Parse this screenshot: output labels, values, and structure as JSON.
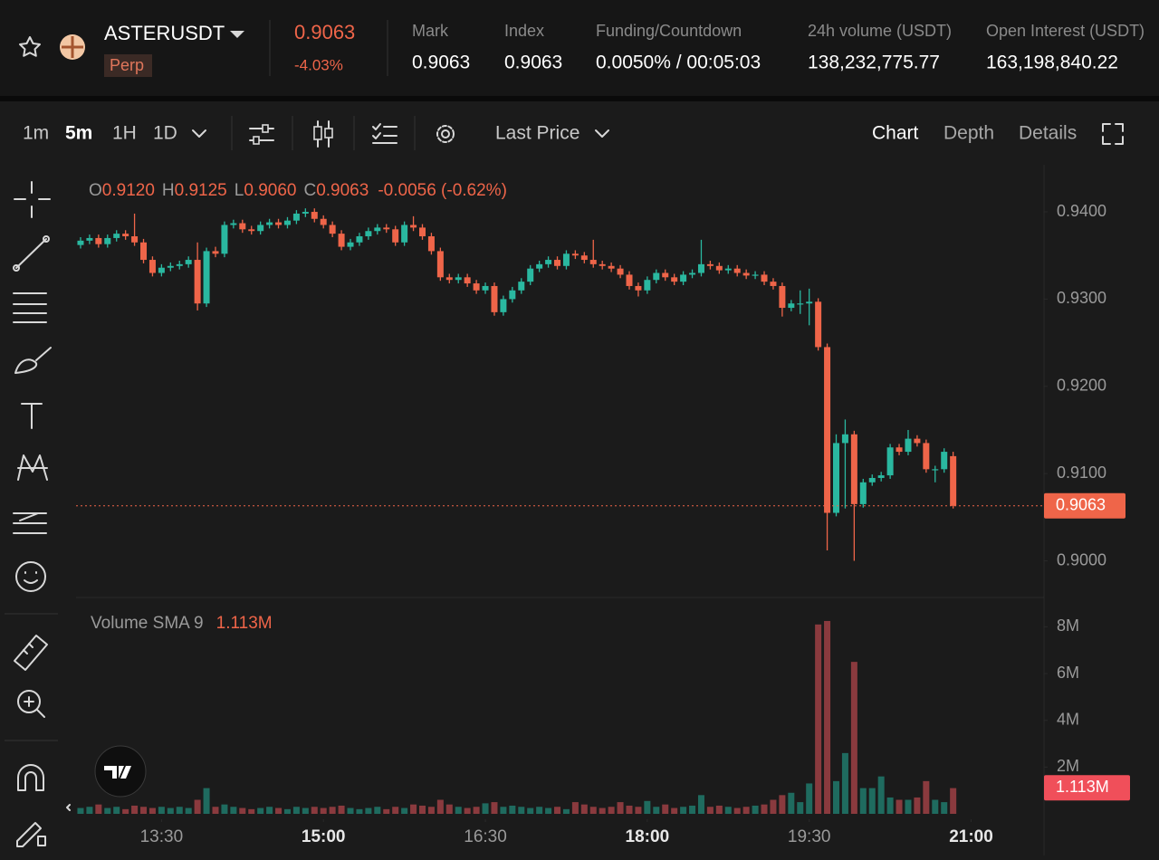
{
  "header": {
    "symbol": "ASTERUSDT",
    "badge": "Perp",
    "price": "0.9063",
    "change": "-4.03%",
    "stats": [
      {
        "label": "Mark",
        "value": "0.9063"
      },
      {
        "label": "Index",
        "value": "0.9063"
      },
      {
        "label": "Funding/Countdown",
        "value": "0.0050% / 00:05:03"
      },
      {
        "label": "24h volume (USDT)",
        "value": "138,232,775.77"
      },
      {
        "label": "Open Interest (USDT)",
        "value": "163,198,840.22"
      }
    ]
  },
  "toolbar": {
    "intervals": [
      "1m",
      "5m",
      "1H",
      "1D"
    ],
    "price_type": "Last Price",
    "views": [
      "Chart",
      "Depth",
      "Details"
    ]
  },
  "chart_data": {
    "type": "candlestick",
    "legend": {
      "O": "O",
      "open": "0.9120",
      "H": "H",
      "high": "0.9125",
      "L": "L",
      "low": "0.9060",
      "C": "C",
      "close": "0.9063",
      "change": "-0.0056 (-0.62%)"
    },
    "up_color": "#2ab8a0",
    "down_color": "#ef6549",
    "grid": false,
    "xlim": [
      -0.5,
      107
    ],
    "xticks": [
      {
        "value": 9,
        "label": "13:30"
      },
      {
        "value": 27,
        "label": "15:00"
      },
      {
        "value": 45,
        "label": "16:30"
      },
      {
        "value": 63,
        "label": "18:00"
      },
      {
        "value": 81,
        "label": "19:30"
      },
      {
        "value": 99,
        "label": "21:00"
      }
    ],
    "ylim": [
      0.8958,
      0.9454
    ],
    "yticks": [
      {
        "value": 0.94,
        "label": "0.9400"
      },
      {
        "value": 0.93,
        "label": "0.9300"
      },
      {
        "value": 0.92,
        "label": "0.9200"
      },
      {
        "value": 0.91,
        "label": "0.9100"
      },
      {
        "value": 0.9,
        "label": "0.9000"
      }
    ],
    "last_price": {
      "value": 0.9063,
      "label": "0.9063"
    },
    "open": [
      0.9362,
      0.9367,
      0.937,
      0.9363,
      0.937,
      0.9375,
      0.9372,
      0.9365,
      0.9345,
      0.933,
      0.9336,
      0.9338,
      0.934,
      0.9345,
      0.9295,
      0.9355,
      0.9352,
      0.9385,
      0.9387,
      0.938,
      0.9378,
      0.9385,
      0.9388,
      0.9385,
      0.939,
      0.9398,
      0.94,
      0.9392,
      0.9385,
      0.9375,
      0.936,
      0.9365,
      0.9372,
      0.9378,
      0.9382,
      0.938,
      0.9365,
      0.9385,
      0.9382,
      0.9372,
      0.9355,
      0.9325,
      0.9322,
      0.9325,
      0.9318,
      0.931,
      0.9315,
      0.9285,
      0.93,
      0.931,
      0.932,
      0.9335,
      0.934,
      0.9345,
      0.9338,
      0.9352,
      0.935,
      0.9345,
      0.934,
      0.9338,
      0.9335,
      0.9328,
      0.9315,
      0.931,
      0.9322,
      0.933,
      0.9325,
      0.932,
      0.9328,
      0.933,
      0.934,
      0.9338,
      0.9333,
      0.9335,
      0.933,
      0.9327,
      0.9328,
      0.932,
      0.9315,
      0.929,
      0.9295,
      0.9295,
      0.9297,
      0.9245,
      0.9055,
      0.9135,
      0.9145,
      0.9065,
      0.909,
      0.9095,
      0.9098,
      0.913,
      0.9125,
      0.914,
      0.9135,
      0.9105,
      0.9105,
      0.912
    ],
    "high": [
      0.9371,
      0.9374,
      0.9374,
      0.9374,
      0.9379,
      0.9379,
      0.9398,
      0.9369,
      0.9349,
      0.934,
      0.9342,
      0.9344,
      0.9349,
      0.9365,
      0.9359,
      0.936,
      0.9389,
      0.9391,
      0.9391,
      0.9384,
      0.9389,
      0.9392,
      0.9392,
      0.9394,
      0.9402,
      0.9404,
      0.9404,
      0.9396,
      0.9389,
      0.9379,
      0.9369,
      0.9376,
      0.9382,
      0.9386,
      0.9386,
      0.9384,
      0.9389,
      0.9395,
      0.9386,
      0.9376,
      0.9359,
      0.9329,
      0.9329,
      0.9329,
      0.9322,
      0.9319,
      0.9319,
      0.9304,
      0.9314,
      0.9324,
      0.9339,
      0.9344,
      0.9349,
      0.9349,
      0.9356,
      0.9356,
      0.9354,
      0.9368,
      0.9344,
      0.9342,
      0.9339,
      0.9332,
      0.9319,
      0.9326,
      0.9334,
      0.9334,
      0.9329,
      0.9332,
      0.9334,
      0.9368,
      0.9344,
      0.9342,
      0.9339,
      0.9339,
      0.9334,
      0.9332,
      0.9332,
      0.9324,
      0.9319,
      0.9299,
      0.931,
      0.9312,
      0.9301,
      0.9249,
      0.9145,
      0.9162,
      0.9149,
      0.9094,
      0.9099,
      0.9102,
      0.9134,
      0.9134,
      0.915,
      0.9144,
      0.9139,
      0.9109,
      0.9129,
      0.9125
    ],
    "low": [
      0.9358,
      0.9363,
      0.9359,
      0.9359,
      0.9366,
      0.9368,
      0.9361,
      0.9341,
      0.9326,
      0.9326,
      0.9332,
      0.9334,
      0.9336,
      0.9287,
      0.9291,
      0.9348,
      0.9348,
      0.9381,
      0.9376,
      0.9374,
      0.9374,
      0.9381,
      0.9381,
      0.9381,
      0.9386,
      0.9394,
      0.9388,
      0.9381,
      0.9371,
      0.9356,
      0.9356,
      0.9361,
      0.9368,
      0.9374,
      0.9376,
      0.9361,
      0.9361,
      0.9378,
      0.9368,
      0.9351,
      0.9321,
      0.9318,
      0.9318,
      0.9314,
      0.9306,
      0.9306,
      0.9281,
      0.9281,
      0.9296,
      0.9306,
      0.9316,
      0.9331,
      0.9336,
      0.9334,
      0.9334,
      0.9346,
      0.9341,
      0.9336,
      0.9334,
      0.9331,
      0.9324,
      0.9311,
      0.9303,
      0.9306,
      0.9318,
      0.9321,
      0.9316,
      0.9316,
      0.9324,
      0.9326,
      0.9334,
      0.9329,
      0.9329,
      0.9326,
      0.9323,
      0.9323,
      0.9316,
      0.9311,
      0.928,
      0.9286,
      0.9283,
      0.927,
      0.9241,
      0.9012,
      0.9051,
      0.906,
      0.9,
      0.9061,
      0.9086,
      0.9091,
      0.9094,
      0.9121,
      0.9121,
      0.9131,
      0.9101,
      0.909,
      0.9101,
      0.906
    ],
    "close": [
      0.9367,
      0.937,
      0.9363,
      0.937,
      0.9375,
      0.9372,
      0.9365,
      0.9345,
      0.933,
      0.9336,
      0.9338,
      0.934,
      0.9345,
      0.9295,
      0.9355,
      0.9352,
      0.9385,
      0.9387,
      0.938,
      0.9378,
      0.9385,
      0.9388,
      0.9385,
      0.939,
      0.9398,
      0.94,
      0.9392,
      0.9385,
      0.9375,
      0.936,
      0.9365,
      0.9372,
      0.9378,
      0.9382,
      0.938,
      0.9365,
      0.9385,
      0.9382,
      0.9372,
      0.9355,
      0.9325,
      0.9322,
      0.9325,
      0.9318,
      0.931,
      0.9315,
      0.9285,
      0.93,
      0.931,
      0.932,
      0.9335,
      0.934,
      0.9345,
      0.9338,
      0.9352,
      0.935,
      0.9345,
      0.934,
      0.9338,
      0.9335,
      0.9328,
      0.9315,
      0.931,
      0.9322,
      0.933,
      0.9325,
      0.932,
      0.9328,
      0.933,
      0.934,
      0.9338,
      0.9333,
      0.9335,
      0.933,
      0.9327,
      0.9328,
      0.932,
      0.9315,
      0.929,
      0.9295,
      0.9295,
      0.9297,
      0.9245,
      0.9055,
      0.9135,
      0.9145,
      0.9065,
      0.909,
      0.9095,
      0.9098,
      0.913,
      0.9125,
      0.914,
      0.9135,
      0.9105,
      0.9105,
      0.9125,
      0.9063
    ],
    "volume": {
      "label": "Volume SMA 9",
      "up_color": "#1f6b5f",
      "down_color": "#8a3a3e",
      "ylim": [
        0,
        8500000
      ],
      "yticks": [
        {
          "value": 2000000,
          "label": "2M"
        },
        {
          "value": 4000000,
          "label": "4M"
        },
        {
          "value": 6000000,
          "label": "6M"
        },
        {
          "value": 8000000,
          "label": "8M"
        }
      ],
      "sma": {
        "value": 1113000,
        "label": "1.113M"
      },
      "values": [
        250000,
        300000,
        400000,
        250000,
        300000,
        200000,
        350000,
        300000,
        250000,
        300000,
        250000,
        300000,
        250000,
        600000,
        1100000,
        300000,
        400000,
        300000,
        250000,
        200000,
        250000,
        300000,
        250000,
        200000,
        300000,
        250000,
        300000,
        250000,
        300000,
        350000,
        250000,
        200000,
        250000,
        300000,
        200000,
        300000,
        250000,
        400000,
        350000,
        300000,
        600000,
        400000,
        300000,
        250000,
        300000,
        450000,
        500000,
        300000,
        350000,
        300000,
        250000,
        300000,
        250000,
        300000,
        200000,
        500000,
        400000,
        300000,
        250000,
        300000,
        500000,
        350000,
        300000,
        550000,
        300000,
        400000,
        250000,
        300000,
        350000,
        800000,
        300000,
        350000,
        300000,
        250000,
        300000,
        350000,
        400000,
        600000,
        800000,
        900000,
        500000,
        1300000,
        8100000,
        8250000,
        1400000,
        2600000,
        6500000,
        1100000,
        1100000,
        1600000,
        700000,
        600000,
        600000,
        700000,
        1400000,
        600000,
        500000,
        1100000
      ]
    }
  }
}
